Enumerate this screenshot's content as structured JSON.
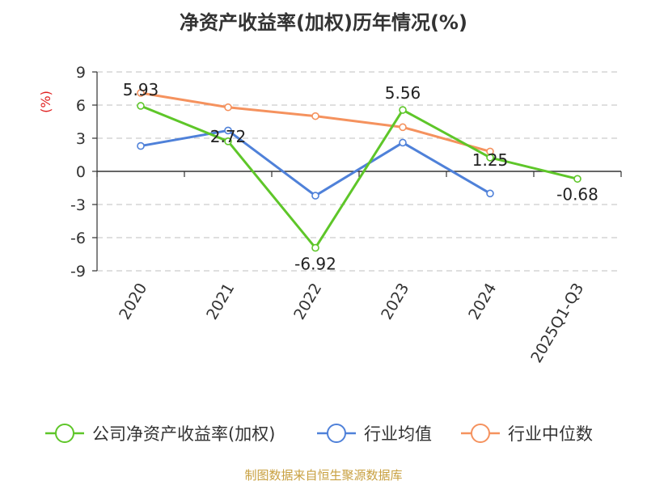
{
  "chart_data": {
    "type": "line",
    "title": "净资产收益率(加权)历年情况(%)",
    "ylabel": "(%)",
    "xlabel": "",
    "categories": [
      "2020",
      "2021",
      "2022",
      "2023",
      "2024",
      "2025Q1-Q3"
    ],
    "ylim": [
      -9,
      9
    ],
    "yticks": [
      9,
      6,
      3,
      0,
      -3,
      -6,
      -9
    ],
    "ytick_labels": [
      "9",
      "6",
      "3",
      "0",
      "-3",
      "-6",
      "-9"
    ],
    "grid": true,
    "legend_position": "bottom",
    "series": [
      {
        "name": "公司净资产收益率(加权)",
        "color": "#5ec629",
        "values": [
          5.93,
          2.72,
          -6.92,
          5.56,
          1.25,
          -0.68
        ],
        "labels": [
          "5.93",
          "2.72",
          "-6.92",
          "5.56",
          "1.25",
          "-0.68"
        ]
      },
      {
        "name": "行业均值",
        "color": "#4f81d9",
        "values": [
          2.3,
          3.7,
          -2.2,
          2.6,
          -2.0,
          null
        ]
      },
      {
        "name": "行业中位数",
        "color": "#f5925e",
        "values": [
          7.1,
          5.8,
          5.0,
          4.0,
          1.8,
          null
        ]
      }
    ],
    "source_note": "制图数据来自恒生聚源数据库"
  }
}
